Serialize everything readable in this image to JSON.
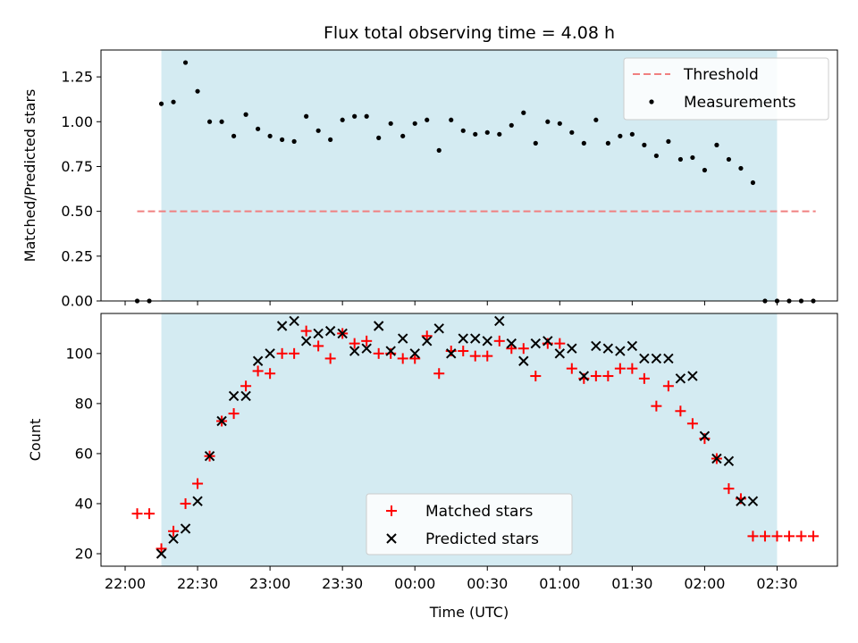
{
  "figure": {
    "title": "Flux total observing time = 4.08 h",
    "xlabel": "Time (UTC)",
    "x_tick_labels": [
      "22:00",
      "22:30",
      "23:00",
      "23:30",
      "00:00",
      "00:30",
      "01:00",
      "01:30",
      "02:00",
      "02:30"
    ],
    "colors": {
      "shade": "#d4ebf2",
      "threshold": "#f08080",
      "measurements": "#000000",
      "matched": "#ff0000",
      "predicted": "#000000"
    }
  },
  "chart_data": [
    {
      "type": "scatter",
      "ylabel": "Matched/Predicted stars",
      "x_unit": "minutes after 22:00 UTC",
      "xlim": [
        -10,
        295
      ],
      "ylim": [
        0,
        1.4
      ],
      "y_ticks": [
        "0.00",
        "0.25",
        "0.50",
        "0.75",
        "1.00",
        "1.25"
      ],
      "y_tick_values": [
        0,
        0.25,
        0.5,
        0.75,
        1.0,
        1.25
      ],
      "shaded_x_range": [
        15,
        270
      ],
      "legend": {
        "placement": "upper right",
        "threshold_label": "Threshold",
        "measurements_label": "Measurements"
      },
      "threshold": {
        "name": "Threshold",
        "y": 0.5,
        "x_range": [
          5,
          286
        ]
      },
      "series": [
        {
          "name": "Measurements",
          "x": [
            5,
            10,
            15,
            20,
            25,
            30,
            35,
            40,
            45,
            50,
            55,
            60,
            65,
            70,
            75,
            80,
            85,
            90,
            95,
            100,
            105,
            110,
            115,
            120,
            125,
            130,
            135,
            140,
            145,
            150,
            155,
            160,
            165,
            170,
            175,
            180,
            185,
            190,
            195,
            200,
            205,
            210,
            215,
            220,
            225,
            230,
            235,
            240,
            245,
            250,
            255,
            260,
            265,
            270,
            275,
            280,
            285
          ],
          "y": [
            0,
            0,
            1.1,
            1.11,
            1.33,
            1.17,
            1.0,
            1.0,
            0.92,
            1.04,
            0.96,
            0.92,
            0.9,
            0.89,
            1.03,
            0.95,
            0.9,
            1.01,
            1.03,
            1.03,
            0.91,
            0.99,
            0.92,
            0.99,
            1.01,
            0.84,
            1.01,
            0.95,
            0.93,
            0.94,
            0.93,
            0.98,
            1.05,
            0.88,
            1.0,
            0.99,
            0.94,
            0.88,
            1.01,
            0.88,
            0.92,
            0.93,
            0.87,
            0.81,
            0.89,
            0.79,
            0.8,
            0.73,
            0.87,
            0.79,
            0.74,
            0.66,
            0,
            0,
            0,
            0,
            0
          ]
        }
      ]
    },
    {
      "type": "scatter",
      "ylabel": "Count",
      "x_unit": "minutes after 22:00 UTC",
      "xlim": [
        -10,
        295
      ],
      "ylim": [
        15,
        116
      ],
      "y_ticks": [
        "20",
        "40",
        "60",
        "80",
        "100"
      ],
      "y_tick_values": [
        20,
        40,
        60,
        80,
        100
      ],
      "shaded_x_range": [
        15,
        270
      ],
      "legend": {
        "placement": "lower center",
        "matched_label": "Matched stars",
        "predicted_label": "Predicted stars"
      },
      "series": [
        {
          "name": "Matched stars",
          "marker": "plus",
          "x": [
            5,
            10,
            15,
            20,
            25,
            30,
            35,
            40,
            45,
            50,
            55,
            60,
            65,
            70,
            75,
            80,
            85,
            90,
            95,
            100,
            105,
            110,
            115,
            120,
            125,
            130,
            135,
            140,
            145,
            150,
            155,
            160,
            165,
            170,
            175,
            180,
            185,
            190,
            195,
            200,
            205,
            210,
            215,
            220,
            225,
            230,
            235,
            240,
            245,
            250,
            255,
            260,
            265,
            270,
            275,
            280,
            285
          ],
          "y": [
            36,
            36,
            22,
            29,
            40,
            48,
            59,
            73,
            76,
            87,
            93,
            92,
            100,
            100,
            109,
            103,
            98,
            108,
            104,
            105,
            100,
            100,
            98,
            98,
            107,
            92,
            101,
            101,
            99,
            99,
            105,
            102,
            102,
            91,
            104,
            104,
            94,
            90,
            91,
            91,
            94,
            94,
            90,
            79,
            87,
            77,
            72,
            66,
            58,
            46,
            42,
            27,
            27,
            27,
            27,
            27,
            27
          ]
        },
        {
          "name": "Predicted stars",
          "marker": "x",
          "x": [
            15,
            20,
            25,
            30,
            35,
            40,
            45,
            50,
            55,
            60,
            65,
            70,
            75,
            80,
            85,
            90,
            95,
            100,
            105,
            110,
            115,
            120,
            125,
            130,
            135,
            140,
            145,
            150,
            155,
            160,
            165,
            170,
            175,
            180,
            185,
            190,
            195,
            200,
            205,
            210,
            215,
            220,
            225,
            230,
            235,
            240,
            245,
            250,
            255,
            260
          ],
          "y": [
            20,
            26,
            30,
            41,
            59,
            73,
            83,
            83,
            97,
            100,
            111,
            113,
            105,
            108,
            109,
            108,
            101,
            102,
            111,
            101,
            106,
            100,
            105,
            110,
            100,
            106,
            106,
            105,
            113,
            104,
            97,
            104,
            105,
            100,
            102,
            91,
            103,
            102,
            101,
            103,
            98,
            98,
            98,
            90,
            91,
            67,
            58,
            57,
            41,
            41
          ]
        }
      ]
    }
  ]
}
